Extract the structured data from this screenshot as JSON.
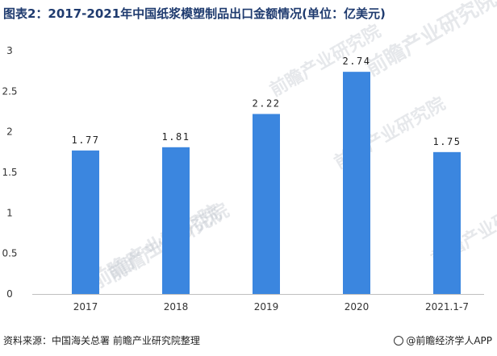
{
  "title": "图表2：2017-2021年中国纸浆模塑制品出口金额情况(单位：亿美元)",
  "source": "资料来源：中国海关总署 前瞻产业研究院整理",
  "brand": "@前瞻经济学人APP",
  "watermark": "前瞻产业研究院",
  "colors": {
    "bar": "#3b86df",
    "title": "#1f3b6f",
    "axis": "#333333"
  },
  "chart_data": {
    "type": "bar",
    "categories": [
      "2017",
      "2018",
      "2019",
      "2020",
      "2021.1-7"
    ],
    "values": [
      1.77,
      1.81,
      2.22,
      2.74,
      1.75
    ],
    "data_labels": [
      "1.77",
      "1.81",
      "2.22",
      "2.74",
      "1.75"
    ],
    "title": "图表2：2017-2021年中国纸浆模塑制品出口金额情况(单位：亿美元)",
    "xlabel": "",
    "ylabel": "",
    "ylim": [
      0,
      3
    ],
    "yticks": [
      "0",
      "0.5",
      "1",
      "1.5",
      "2",
      "2.5",
      "3"
    ],
    "grid": false,
    "legend": "none"
  }
}
